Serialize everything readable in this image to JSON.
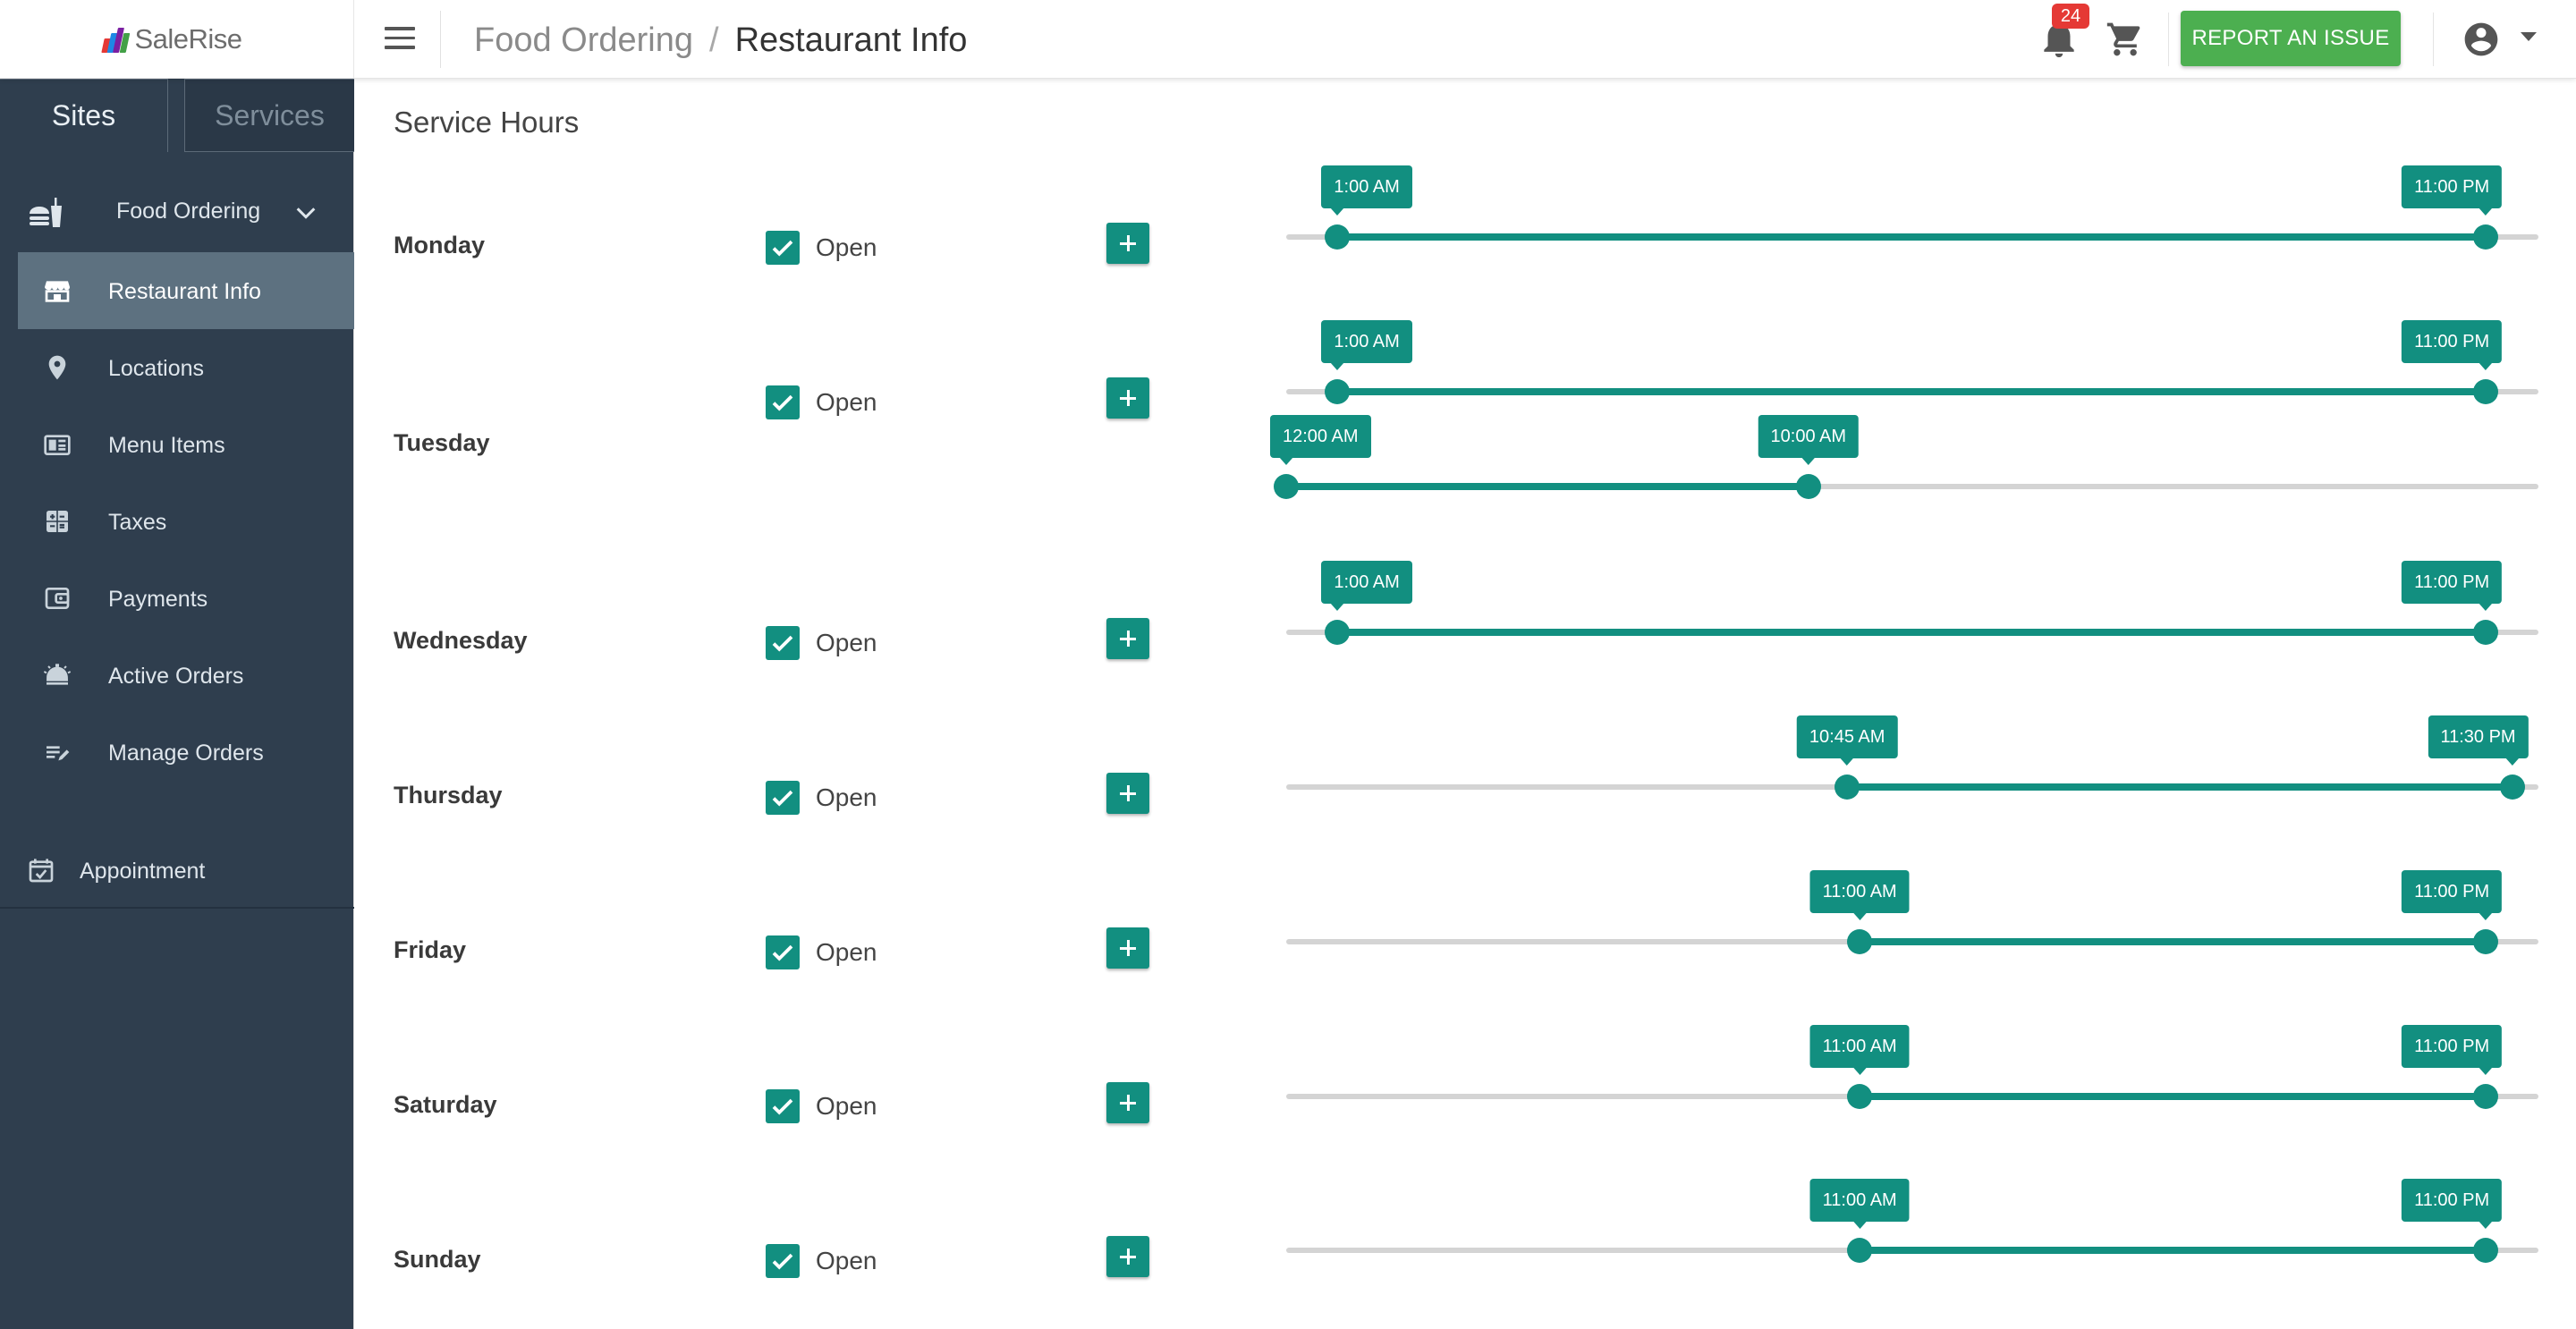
{
  "app": {
    "brand": "SaleRise"
  },
  "header": {
    "breadcrumb": {
      "parent": "Food Ordering",
      "separator": "/",
      "current": "Restaurant Info"
    },
    "notifications_count": "24",
    "report_label": "REPORT AN ISSUE"
  },
  "sidebar": {
    "tabs": [
      {
        "label": "Sites",
        "active": true
      },
      {
        "label": "Services",
        "active": false
      }
    ],
    "group": {
      "label": "Food Ordering",
      "expanded": true
    },
    "items": [
      {
        "label": "Restaurant Info",
        "icon": "storefront-icon",
        "active": true
      },
      {
        "label": "Locations",
        "icon": "map-pin-icon"
      },
      {
        "label": "Menu Items",
        "icon": "menu-book-icon"
      },
      {
        "label": "Taxes",
        "icon": "calculator-icon"
      },
      {
        "label": "Payments",
        "icon": "wallet-icon"
      },
      {
        "label": "Active Orders",
        "icon": "service-bell-icon"
      },
      {
        "label": "Manage Orders",
        "icon": "edit-list-icon"
      }
    ],
    "appointment": {
      "label": "Appointment",
      "icon": "calendar-check-icon"
    }
  },
  "main": {
    "title": "Service Hours",
    "open_label": "Open",
    "days": [
      {
        "day": "Monday",
        "open": true,
        "ranges": [
          {
            "start": "1:00 AM",
            "end": "11:00 PM",
            "start_fraction": 0.041,
            "end_fraction": 0.958
          }
        ]
      },
      {
        "day": "Tuesday",
        "open": true,
        "ranges": [
          {
            "start": "1:00 AM",
            "end": "11:00 PM",
            "start_fraction": 0.041,
            "end_fraction": 0.958
          },
          {
            "start": "12:00 AM",
            "end": "10:00 AM",
            "start_fraction": 0.0,
            "end_fraction": 0.417
          }
        ]
      },
      {
        "day": "Wednesday",
        "open": true,
        "ranges": [
          {
            "start": "1:00 AM",
            "end": "11:00 PM",
            "start_fraction": 0.041,
            "end_fraction": 0.958
          }
        ]
      },
      {
        "day": "Thursday",
        "open": true,
        "ranges": [
          {
            "start": "10:45 AM",
            "end": "11:30 PM",
            "start_fraction": 0.448,
            "end_fraction": 0.979
          }
        ]
      },
      {
        "day": "Friday",
        "open": true,
        "ranges": [
          {
            "start": "11:00 AM",
            "end": "11:00 PM",
            "start_fraction": 0.458,
            "end_fraction": 0.958
          }
        ]
      },
      {
        "day": "Saturday",
        "open": true,
        "ranges": [
          {
            "start": "11:00 AM",
            "end": "11:00 PM",
            "start_fraction": 0.458,
            "end_fraction": 0.958
          }
        ]
      },
      {
        "day": "Sunday",
        "open": true,
        "ranges": [
          {
            "start": "11:00 AM",
            "end": "11:00 PM",
            "start_fraction": 0.458,
            "end_fraction": 0.958
          }
        ]
      }
    ]
  },
  "colors": {
    "accent": "#128f80",
    "sidebar_bg": "#2f3e4e",
    "sidebar_active": "#5d7180",
    "report_button": "#4caf50",
    "badge": "#e53935"
  }
}
